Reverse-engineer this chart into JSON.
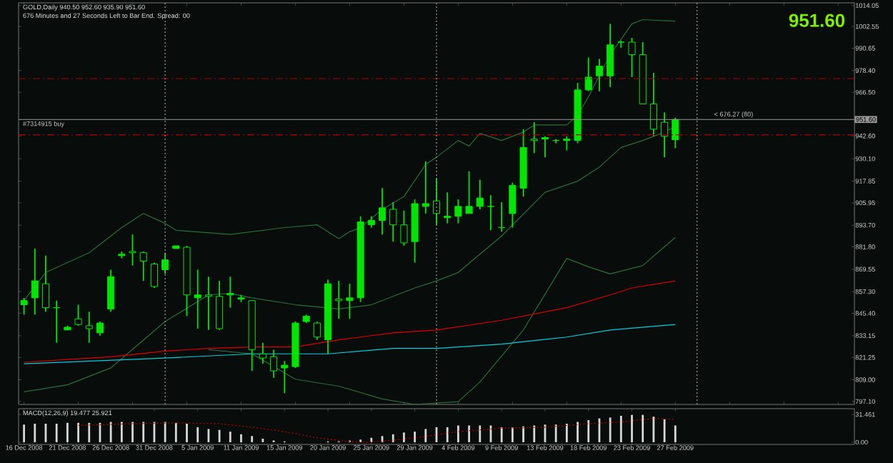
{
  "chart_data": [
    {
      "type": "candlestick",
      "title": "GOLD,Daily  940.50 952.60 935.90 951.60",
      "subtitle": "676 Minutes and 27 Seconds Left to Bar End.   Spread: 00",
      "color": "#00e600",
      "categories": [
        null,
        null,
        null,
        null,
        null,
        null,
        null,
        null,
        null,
        null,
        null,
        null,
        null,
        null,
        null,
        null,
        null,
        null,
        null,
        null,
        null,
        null,
        null,
        null,
        null,
        null,
        null,
        null,
        null,
        null,
        null,
        null,
        null,
        null,
        null,
        null,
        null,
        null,
        null,
        null,
        null,
        null,
        null,
        null,
        null,
        null,
        null,
        null,
        null,
        null,
        null,
        null,
        null,
        null,
        null,
        null,
        null,
        null,
        null,
        null,
        null,
        null,
        null,
        null,
        null,
        null,
        null,
        null,
        null,
        null,
        null,
        null,
        null,
        null,
        null,
        null,
        null
      ],
      "ohlc": [
        [
          850.1,
          853.9,
          844.7,
          852.4
        ],
        [
          853.9,
          880.9,
          844.7,
          863.2
        ],
        [
          861.6,
          877.0,
          846.3,
          848.5
        ],
        [
          848.5,
          852.4,
          829.3,
          848.5
        ],
        [
          836.3,
          838.6,
          836.3,
          837.8
        ],
        [
          842.4,
          850.1,
          838.6,
          839.3
        ],
        [
          838.6,
          846.3,
          829.3,
          837.0
        ],
        [
          834.7,
          840.9,
          833.2,
          840.1
        ],
        [
          847.8,
          869.3,
          846.3,
          865.5
        ],
        [
          877.0,
          879.3,
          875.5,
          877.8
        ],
        [
          879.3,
          888.6,
          871.6,
          878.6
        ],
        [
          878.6,
          879.3,
          863.2,
          874.0
        ],
        [
          872.4,
          873.2,
          859.3,
          860.1
        ],
        [
          869.3,
          878.6,
          867.0,
          874.7
        ],
        [
          880.9,
          882.4,
          880.9,
          882.4
        ],
        [
          881.6,
          882.4,
          843.9,
          855.5
        ],
        [
          853.9,
          869.3,
          837.0,
          855.5
        ],
        [
          855.5,
          865.5,
          836.3,
          854.7
        ],
        [
          854.7,
          863.2,
          836.3,
          837.0
        ],
        [
          855.5,
          865.5,
          848.5,
          856.3
        ],
        [
          853.2,
          855.5,
          851.6,
          853.9
        ],
        [
          852.4,
          852.4,
          813.9,
          825.5
        ],
        [
          823.2,
          829.3,
          817.8,
          820.9
        ],
        [
          821.6,
          825.5,
          810.1,
          813.9
        ],
        [
          815.5,
          819.3,
          801.6,
          817.0
        ],
        [
          816.2,
          840.9,
          815.5,
          840.1
        ],
        [
          840.9,
          844.7,
          840.1,
          843.9
        ],
        [
          840.1,
          840.9,
          830.9,
          832.4
        ],
        [
          830.9,
          863.9,
          823.2,
          861.6
        ],
        [
          853.2,
          863.2,
          842.4,
          852.4
        ],
        [
          852.4,
          861.6,
          842.4,
          853.9
        ],
        [
          853.9,
          898.6,
          851.6,
          895.5
        ],
        [
          893.9,
          898.6,
          892.4,
          896.3
        ],
        [
          896.3,
          914.0,
          888.6,
          903.2
        ],
        [
          902.4,
          906.3,
          884.7,
          893.9
        ],
        [
          893.9,
          901.7,
          882.4,
          884.0
        ],
        [
          884.7,
          907.8,
          873.2,
          905.5
        ],
        [
          904.0,
          928.6,
          900.1,
          905.5
        ],
        [
          907.0,
          919.4,
          893.9,
          900.1
        ],
        [
          897.8,
          911.7,
          894.7,
          898.6
        ],
        [
          898.6,
          907.8,
          894.7,
          904.0
        ],
        [
          900.1,
          923.2,
          900.1,
          904.0
        ],
        [
          904.0,
          918.6,
          902.4,
          908.6
        ],
        [
          904.0,
          910.1,
          890.9,
          904.0
        ],
        [
          892.4,
          906.3,
          890.1,
          892.4
        ],
        [
          900.1,
          917.0,
          892.4,
          915.5
        ],
        [
          914.0,
          946.3,
          909.4,
          936.3
        ],
        [
          940.9,
          950.1,
          933.2,
          940.1
        ],
        [
          940.9,
          942.4,
          930.9,
          941.7
        ],
        [
          940.1,
          940.9,
          938.6,
          940.1
        ],
        [
          940.1,
          942.4,
          934.7,
          940.9
        ],
        [
          940.1,
          971.7,
          938.6,
          967.8
        ],
        [
          967.8,
          985.5,
          967.1,
          974.8
        ],
        [
          975.5,
          984.8,
          967.1,
          980.9
        ],
        [
          975.5,
          1004.0,
          969.4,
          992.5
        ],
        [
          994.0,
          994.8,
          990.9,
          994.0
        ],
        [
          994.0,
          996.3,
          974.8,
          987.1
        ],
        [
          987.1,
          994.0,
          960.1,
          960.1
        ],
        [
          960.1,
          977.1,
          942.4,
          946.3
        ],
        [
          950.1,
          955.5,
          930.9,
          942.4
        ],
        [
          940.5,
          952.6,
          935.9,
          951.6
        ],
        null,
        null,
        null,
        null,
        null,
        null,
        null,
        null,
        null,
        null,
        null,
        null,
        null,
        null,
        null,
        null
      ],
      "series": [
        {
          "type": "line",
          "color": "#2a6e3c",
          "values": [
            852.4,
            null,
            867.8,
            null,
            null,
            null,
            878.6,
            null,
            null,
            892.4,
            null,
            900.1,
            null,
            894.7,
            890.9,
            null,
            null,
            null,
            null,
            888.6,
            null,
            null,
            null,
            null,
            892.4,
            null,
            null,
            893.9,
            null,
            886.3,
            890.1,
            892.4,
            null,
            902.4,
            null,
            909.4,
            null,
            927.0,
            930.9,
            null,
            940.1,
            937.0,
            944.0,
            null,
            940.1,
            null,
            944.7,
            948.6,
            null,
            null,
            948.6,
            953.9,
            964.0,
            null,
            987.1,
            null,
            1004.0,
            1006.3,
            null,
            null,
            1005.5,
            null,
            null,
            null,
            null,
            null,
            null,
            null,
            null,
            null,
            null,
            null,
            null,
            null,
            null,
            null,
            null
          ]
        },
        {
          "type": "line",
          "color": "#2a6e3c",
          "values": [
            802.4,
            null,
            null,
            null,
            806.2,
            null,
            null,
            null,
            815.5,
            null,
            null,
            null,
            null,
            840.9,
            null,
            null,
            null,
            855.5,
            null,
            856.3,
            null,
            853.9,
            null,
            null,
            null,
            850.1,
            null,
            null,
            null,
            847.8,
            null,
            null,
            850.1,
            null,
            null,
            null,
            859.3,
            null,
            863.2,
            null,
            867.8,
            null,
            null,
            null,
            887.8,
            null,
            null,
            null,
            911.7,
            null,
            null,
            917.8,
            null,
            925.5,
            null,
            936.3,
            null,
            940.1,
            null,
            944.7,
            947.8,
            null,
            null,
            null,
            null,
            null,
            null,
            null,
            null,
            null,
            null,
            null,
            null,
            null,
            null,
            null,
            null
          ]
        },
        {
          "type": "line",
          "color": "#2a6e3c",
          "values": [
            null,
            null,
            null,
            null,
            null,
            null,
            null,
            null,
            null,
            null,
            null,
            null,
            null,
            null,
            null,
            null,
            null,
            825.5,
            null,
            null,
            null,
            823.2,
            null,
            null,
            null,
            809.3,
            null,
            null,
            null,
            805.5,
            null,
            null,
            null,
            798.5,
            null,
            null,
            795.5,
            null,
            null,
            null,
            797.0,
            null,
            807.8,
            null,
            null,
            null,
            836.3,
            null,
            null,
            null,
            875.5,
            null,
            870.9,
            null,
            867.0,
            null,
            null,
            871.6,
            null,
            null,
            887.0,
            null,
            null,
            null,
            null,
            null,
            null,
            null,
            null,
            null,
            null,
            null,
            null,
            null,
            null,
            null,
            null
          ]
        },
        {
          "type": "line",
          "color": "#e00000",
          "values": [
            818.6,
            null,
            null,
            null,
            820.1,
            null,
            null,
            null,
            821.6,
            null,
            null,
            null,
            null,
            824.7,
            null,
            null,
            null,
            826.2,
            null,
            null,
            null,
            827.0,
            null,
            null,
            null,
            827.0,
            null,
            null,
            null,
            830.9,
            null,
            null,
            null,
            null,
            834.7,
            null,
            null,
            null,
            836.3,
            null,
            null,
            null,
            null,
            null,
            841.6,
            null,
            null,
            null,
            null,
            null,
            848.5,
            null,
            null,
            null,
            855.5,
            null,
            859.3,
            null,
            null,
            null,
            863.2,
            null,
            null,
            null,
            null,
            null,
            null,
            null,
            null,
            null,
            null,
            null,
            null,
            null,
            null,
            null,
            null
          ]
        },
        {
          "type": "line",
          "color": "#00d0e0",
          "values": [
            817.8,
            null,
            null,
            null,
            null,
            null,
            null,
            null,
            null,
            null,
            null,
            null,
            null,
            820.9,
            null,
            null,
            null,
            null,
            null,
            null,
            null,
            823.2,
            null,
            null,
            null,
            null,
            null,
            null,
            823.2,
            null,
            null,
            null,
            null,
            null,
            826.2,
            null,
            null,
            null,
            826.2,
            null,
            null,
            null,
            null,
            null,
            828.5,
            null,
            null,
            null,
            null,
            null,
            832.4,
            null,
            null,
            null,
            836.3,
            null,
            null,
            null,
            null,
            null,
            839.3,
            null,
            null,
            null,
            null,
            null,
            null,
            null,
            null,
            null,
            null,
            null,
            null,
            null,
            null,
            null,
            null
          ]
        }
      ],
      "grid": "x",
      "ylim": [
        795.5,
        1015.5
      ],
      "yticks": [
        {
          "value": 797.1,
          "label": "797.10"
        },
        {
          "value": 809,
          "label": "809.00"
        },
        821.25,
        833.15,
        {
          "value": 845.4,
          "label": "845.40"
        },
        {
          "value": 857.3,
          "label": "857.30"
        },
        869.55,
        {
          "value": 881.8,
          "label": "881.80"
        },
        {
          "value": 893.7,
          "label": "893.70"
        },
        905.95,
        917.85,
        {
          "value": 930.1,
          "label": "930.10"
        },
        {
          "value": 942.6,
          "label": "942.60"
        },
        {
          "value": 966.5,
          "label": "966.50"
        },
        {
          "value": 978.4,
          "label": "978.40"
        },
        990.65,
        1002.55,
        1014.05
      ],
      "ref_lines": [
        {
          "axis": "y",
          "value": 974.0,
          "color": "#b00000",
          "line_style": "dashed"
        },
        {
          "axis": "y",
          "value": 943.2,
          "color": "#b00000",
          "line_style": "dashed"
        },
        {
          "axis": "y",
          "value": 951.6,
          "label": "951.60",
          "color": "#9a9a9a",
          "line_style": "solid"
        }
      ],
      "annotations": [
        "951.60",
        {
          "text": "#7314915 buy",
          "y": 951.6
        },
        {
          "text": "< 676.27 (80)",
          "y": 951.6
        }
      ]
    },
    {
      "type": "bar",
      "title": "MACD(12,26,9) 19.477 25.921",
      "categories": [
        "16 Dec 2008",
        null,
        null,
        null,
        "21 Dec 2008",
        null,
        null,
        null,
        "26 Dec 2008",
        null,
        null,
        null,
        "31 Dec 2008",
        null,
        null,
        null,
        "5 Jan 2009",
        null,
        null,
        null,
        "11 Jan 2009",
        null,
        null,
        null,
        "15 Jan 2009",
        null,
        null,
        null,
        "20 Jan 2009",
        null,
        null,
        null,
        "25 Jan 2009",
        null,
        null,
        null,
        "29 Jan 2009",
        null,
        null,
        null,
        "4 Feb 2009",
        null,
        null,
        null,
        "9 Feb 2009",
        null,
        null,
        null,
        "13 Feb 2009",
        null,
        null,
        null,
        "18 Feb 2009",
        null,
        null,
        null,
        "23 Feb 2009",
        null,
        null,
        null,
        "27 Feb 2009",
        null,
        null,
        null,
        null,
        null,
        null,
        null,
        null,
        null,
        null,
        null,
        null,
        null,
        null,
        null,
        null
      ],
      "ylim": [
        -2.5,
        38
      ],
      "yticks": [
        {
          "value": 0,
          "label": "0.00"
        },
        {
          "value": 31.461,
          "label": "31.461"
        }
      ],
      "series": [
        {
          "type": "bar",
          "color": "#d8d8d8",
          "values": [
            20,
            21,
            21,
            21,
            22,
            22,
            22,
            22,
            23,
            23,
            23,
            23,
            23,
            23,
            22,
            21,
            17,
            15,
            14,
            12,
            9,
            7,
            4,
            2,
            1,
            0,
            0,
            0,
            1,
            1,
            2,
            3,
            5,
            7,
            9,
            11,
            12,
            15,
            17,
            17,
            19,
            19,
            19,
            19,
            17,
            17,
            18,
            19,
            20,
            20,
            21,
            23,
            25,
            27,
            28,
            30,
            31,
            31,
            29,
            26,
            19,
            null,
            null,
            null,
            null,
            null,
            null,
            null,
            null,
            null,
            null,
            null,
            null,
            null,
            null,
            null,
            null
          ]
        },
        {
          "type": "line",
          "color": "#c00000",
          "line_style": "dotted",
          "values": [
            null,
            null,
            null,
            null,
            null,
            19,
            null,
            null,
            null,
            null,
            21,
            null,
            null,
            null,
            22,
            null,
            null,
            null,
            21,
            null,
            null,
            17,
            null,
            null,
            12,
            null,
            null,
            5,
            null,
            2,
            null,
            0,
            null,
            1,
            null,
            null,
            5,
            null,
            null,
            null,
            12,
            null,
            null,
            null,
            16,
            null,
            null,
            null,
            17,
            null,
            null,
            null,
            21,
            null,
            null,
            23,
            null,
            null,
            27,
            null,
            26,
            null,
            null,
            null,
            null,
            null,
            null,
            null,
            null,
            null,
            null,
            null,
            null,
            null,
            null,
            null,
            null
          ]
        }
      ]
    }
  ]
}
